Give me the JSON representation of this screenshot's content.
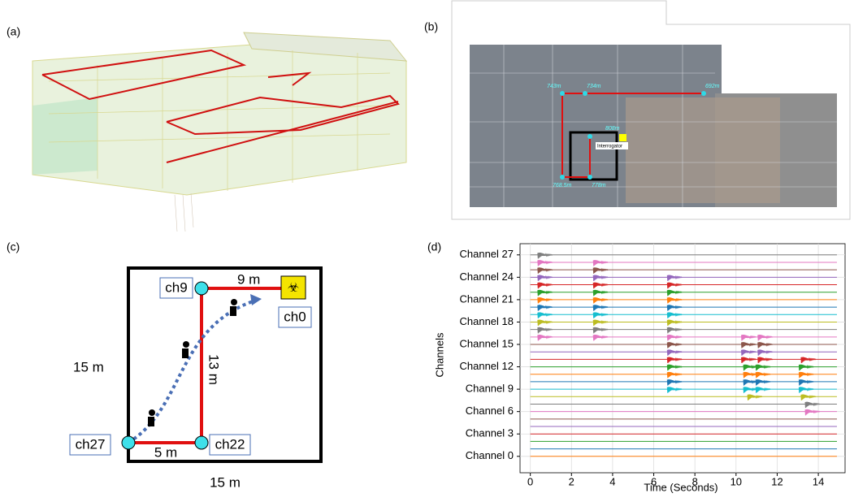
{
  "panels": {
    "a": {
      "label": "(a)"
    },
    "b": {
      "label": "(b)",
      "annotations": [
        "743m",
        "734m",
        "692m",
        "808m",
        "Interrogator",
        "768.5m",
        "778m"
      ]
    },
    "c": {
      "label": "(c)",
      "texts": [
        "9 m",
        "ch9",
        "ch0",
        "13 m",
        "15 m",
        "ch27",
        "5 m",
        "ch22",
        "15 m"
      ]
    },
    "d": {
      "label": "(d)"
    }
  },
  "chart_data": {
    "type": "waterfall",
    "x_label": "Time (Seconds)",
    "y_label": "Channels",
    "xlim": [
      -0.5,
      15.3
    ],
    "xticks": [
      0,
      2,
      4,
      6,
      8,
      10,
      12,
      14
    ],
    "ylim": [
      -2.2,
      28.5
    ],
    "yticks": [
      {
        "value": 0,
        "label": "Channel 0"
      },
      {
        "value": 3,
        "label": "Channel 3"
      },
      {
        "value": 6,
        "label": "Channel 6"
      },
      {
        "value": 9,
        "label": "Channel 9"
      },
      {
        "value": 12,
        "label": "Channel 12"
      },
      {
        "value": 15,
        "label": "Channel 15"
      },
      {
        "value": 18,
        "label": "Channel 18"
      },
      {
        "value": 21,
        "label": "Channel 21"
      },
      {
        "value": 24,
        "label": "Channel 24"
      },
      {
        "value": 27,
        "label": "Channel 27"
      }
    ],
    "grid": true,
    "series": [
      {
        "channel": 0,
        "color": "#ff7f0e",
        "bursts": []
      },
      {
        "channel": 1,
        "color": "#1f77b4",
        "bursts": []
      },
      {
        "channel": 2,
        "color": "#2ca02c",
        "bursts": []
      },
      {
        "channel": 3,
        "color": "#d62728",
        "bursts": []
      },
      {
        "channel": 4,
        "color": "#9467bd",
        "bursts": []
      },
      {
        "channel": 5,
        "color": "#8c564b",
        "bursts": []
      },
      {
        "channel": 6,
        "color": "#e377c2",
        "bursts": [
          13.6
        ]
      },
      {
        "channel": 7,
        "color": "#7f7f7f",
        "bursts": [
          13.6
        ]
      },
      {
        "channel": 8,
        "color": "#bcbd22",
        "bursts": [
          10.8,
          13.4
        ]
      },
      {
        "channel": 9,
        "color": "#17becf",
        "bursts": [
          6.9,
          10.6,
          11.2,
          13.3
        ]
      },
      {
        "channel": 10,
        "color": "#1f77b4",
        "bursts": [
          6.9,
          10.6,
          11.2,
          13.3
        ]
      },
      {
        "channel": 11,
        "color": "#ff7f0e",
        "bursts": [
          6.9,
          10.6,
          11.2,
          13.3
        ]
      },
      {
        "channel": 12,
        "color": "#2ca02c",
        "bursts": [
          6.9,
          10.6,
          11.2,
          13.3
        ]
      },
      {
        "channel": 13,
        "color": "#d62728",
        "bursts": [
          6.9,
          10.5,
          11.3,
          13.4
        ]
      },
      {
        "channel": 14,
        "color": "#9467bd",
        "bursts": [
          6.9,
          10.5,
          11.3
        ]
      },
      {
        "channel": 15,
        "color": "#8c564b",
        "bursts": [
          6.9,
          10.5,
          11.3
        ]
      },
      {
        "channel": 16,
        "color": "#e377c2",
        "bursts": [
          0.6,
          3.3,
          6.9,
          10.5,
          11.3
        ]
      },
      {
        "channel": 17,
        "color": "#7f7f7f",
        "bursts": [
          0.6,
          3.3,
          6.9
        ]
      },
      {
        "channel": 18,
        "color": "#bcbd22",
        "bursts": [
          0.6,
          3.3,
          6.9
        ]
      },
      {
        "channel": 19,
        "color": "#17becf",
        "bursts": [
          0.6,
          3.3,
          6.9
        ]
      },
      {
        "channel": 20,
        "color": "#1f77b4",
        "bursts": [
          0.6,
          3.3,
          6.9
        ]
      },
      {
        "channel": 21,
        "color": "#ff7f0e",
        "bursts": [
          0.6,
          3.3,
          6.9
        ]
      },
      {
        "channel": 22,
        "color": "#2ca02c",
        "bursts": [
          0.6,
          3.3,
          6.9
        ]
      },
      {
        "channel": 23,
        "color": "#d62728",
        "bursts": [
          0.6,
          3.3,
          6.9
        ]
      },
      {
        "channel": 24,
        "color": "#9467bd",
        "bursts": [
          0.6,
          3.3,
          6.9
        ]
      },
      {
        "channel": 25,
        "color": "#8c564b",
        "bursts": [
          0.6,
          3.3
        ]
      },
      {
        "channel": 26,
        "color": "#e377c2",
        "bursts": [
          0.6,
          3.3
        ]
      },
      {
        "channel": 27,
        "color": "#7f7f7f",
        "bursts": [
          0.6
        ]
      }
    ]
  }
}
